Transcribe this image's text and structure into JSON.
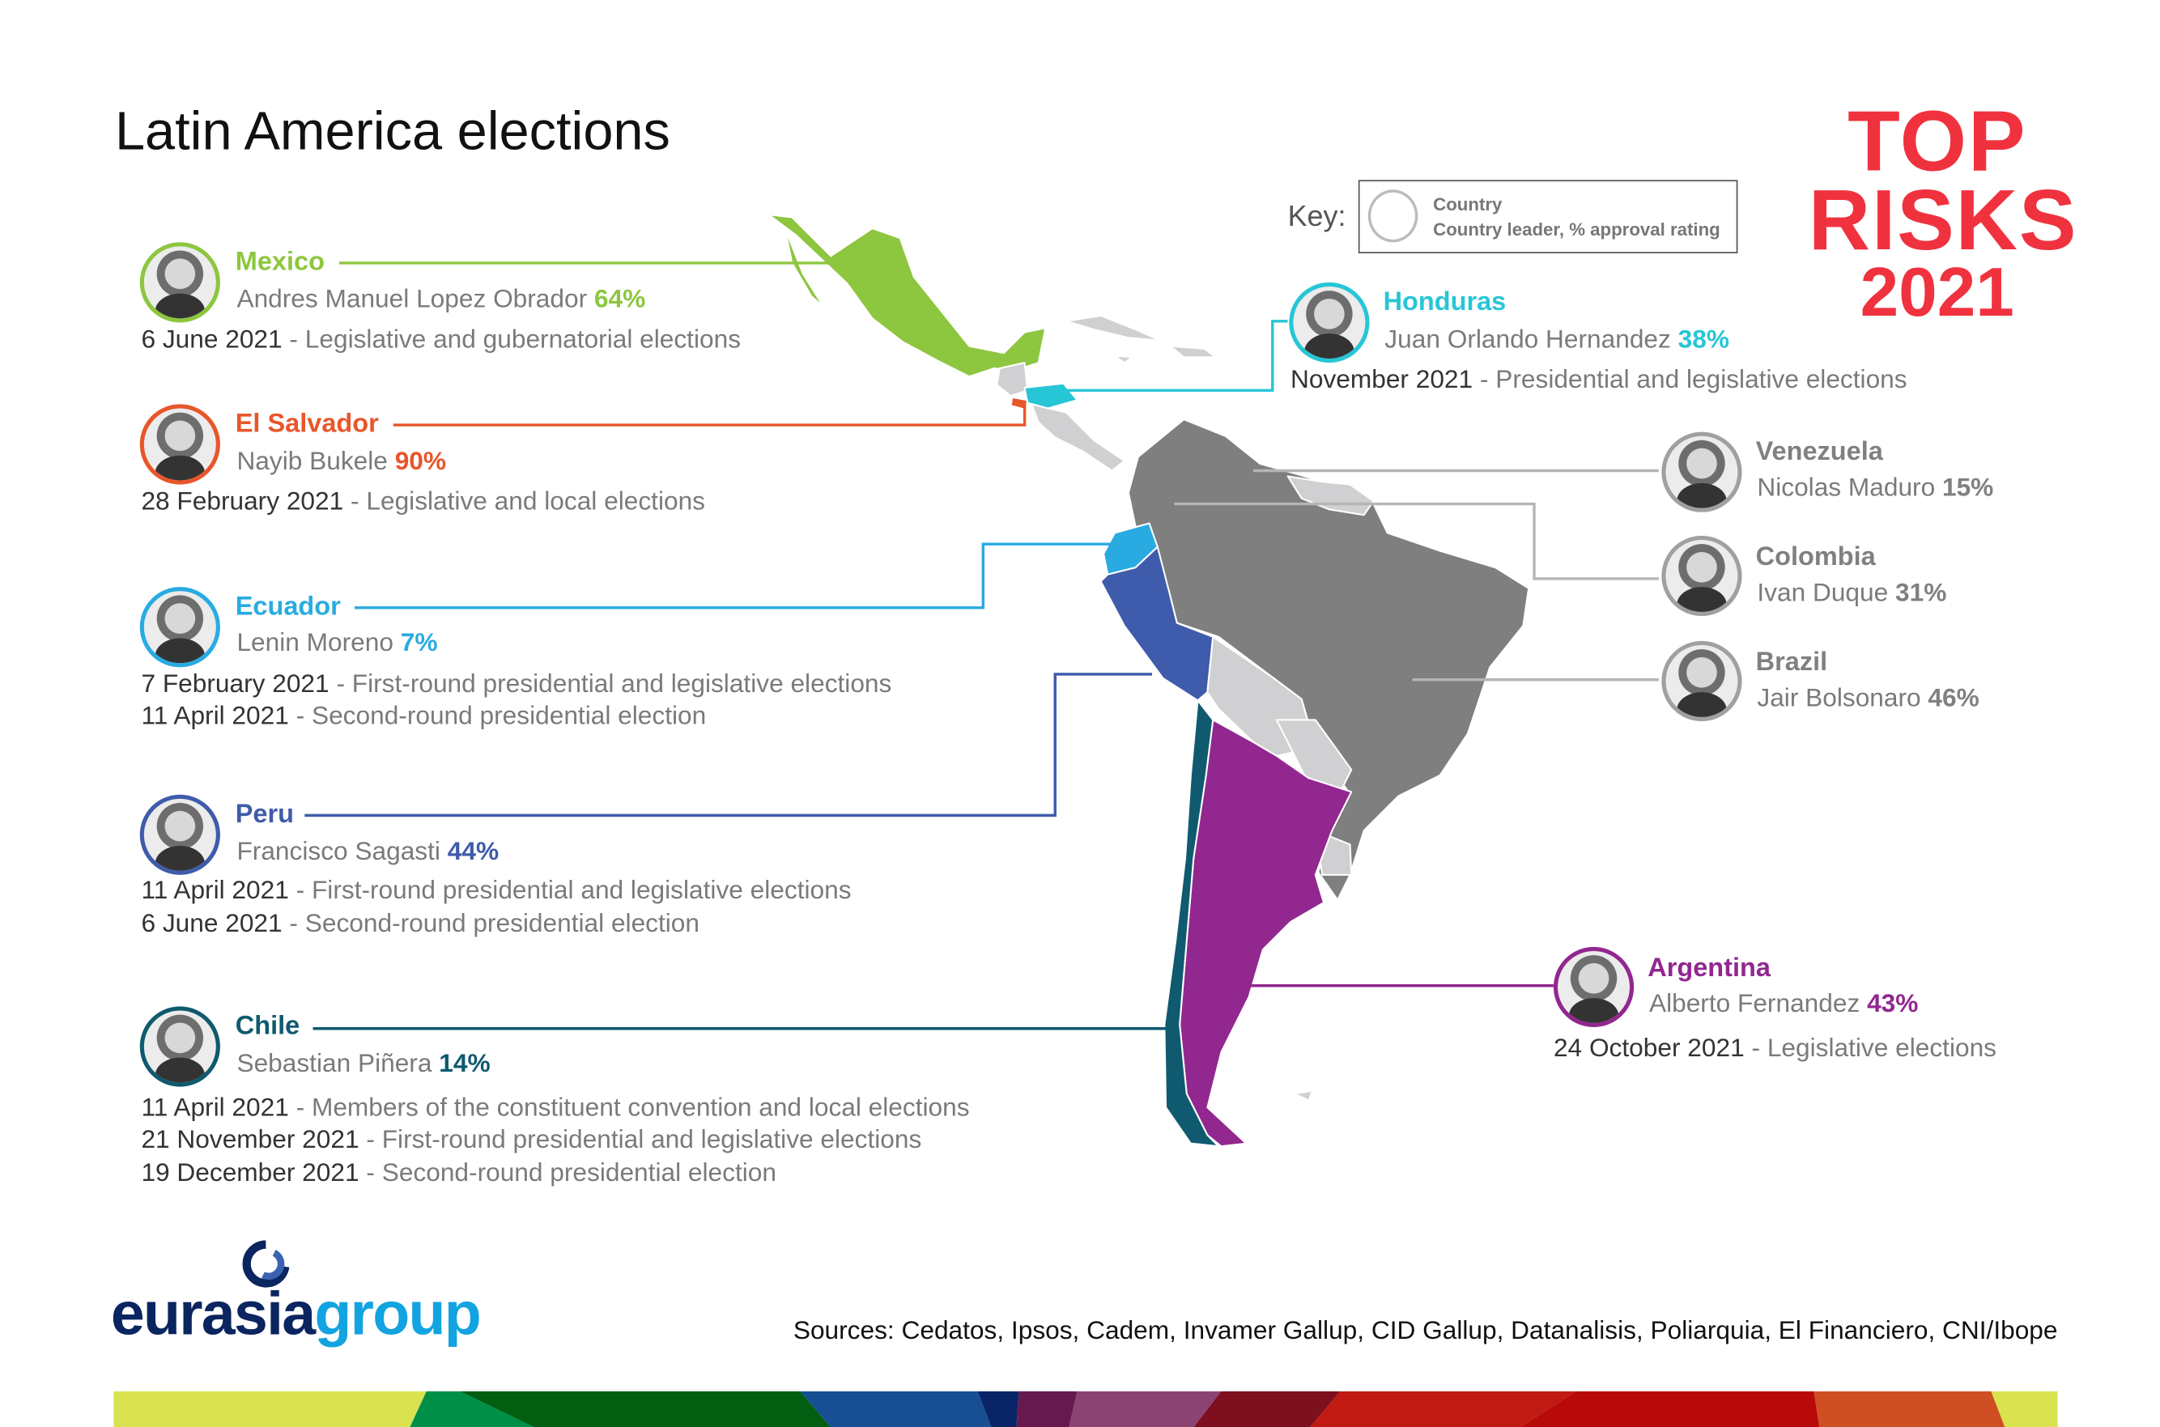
{
  "title": "Latin America elections",
  "key": {
    "label": "Key:",
    "line1": "Country",
    "line2": "Country leader, % approval rating"
  },
  "brand": {
    "line1": "TOP",
    "line2": "RISKS",
    "line3": "2021",
    "color": "#f0323f"
  },
  "countries": [
    {
      "name": "Mexico",
      "leader": "Andres Manuel Lopez Obrador",
      "approval": "64%",
      "color": "#8dc63f",
      "elections": [
        {
          "date": "6 June 2021",
          "desc": "Legislative and gubernatorial elections"
        }
      ]
    },
    {
      "name": "El Salvador",
      "leader": "Nayib Bukele",
      "approval": "90%",
      "color": "#e8562a",
      "elections": [
        {
          "date": "28 February 2021",
          "desc": "Legislative and local elections"
        }
      ]
    },
    {
      "name": "Ecuador",
      "leader": "Lenin Moreno",
      "approval": "7%",
      "color": "#29abe2",
      "elections": [
        {
          "date": "7 February 2021",
          "desc": "First-round presidential and legislative elections"
        },
        {
          "date": "11 April 2021",
          "desc": "Second-round presidential election"
        }
      ]
    },
    {
      "name": "Peru",
      "leader": "Francisco Sagasti",
      "approval": "44%",
      "color": "#3f5bab",
      "elections": [
        {
          "date": "11 April 2021",
          "desc": "First-round presidential and legislative elections"
        },
        {
          "date": "6 June 2021",
          "desc": "Second-round presidential election"
        }
      ]
    },
    {
      "name": "Chile",
      "leader": "Sebastian Piñera",
      "approval": "14%",
      "color": "#0f5a6e",
      "elections": [
        {
          "date": "11 April 2021",
          "desc": "Members of the constituent convention and local elections"
        },
        {
          "date": "21 November 2021",
          "desc": "First-round presidential and legislative elections"
        },
        {
          "date": "19 December 2021",
          "desc": "Second-round presidential election"
        }
      ]
    },
    {
      "name": "Honduras",
      "leader": "Juan Orlando Hernandez",
      "approval": "38%",
      "color": "#27c6d6",
      "elections": [
        {
          "date": "November 2021",
          "desc": "Presidential and legislative elections"
        }
      ]
    },
    {
      "name": "Venezuela",
      "leader": "Nicolas Maduro",
      "approval": "15%",
      "color": "#808080",
      "elections": []
    },
    {
      "name": "Colombia",
      "leader": "Ivan Duque",
      "approval": "31%",
      "color": "#808080",
      "elections": []
    },
    {
      "name": "Brazil",
      "leader": "Jair Bolsonaro",
      "approval": "46%",
      "color": "#808080",
      "elections": []
    },
    {
      "name": "Argentina",
      "leader": "Alberto Fernandez",
      "approval": "43%",
      "color": "#92278f",
      "elections": [
        {
          "date": "24 October 2021",
          "desc": "Legislative elections"
        }
      ]
    }
  ],
  "map_colors": {
    "other_country": "#d0d0d2",
    "gray_country": "#7f7f80"
  },
  "logo": {
    "part1": "eurasia",
    "part2": "group"
  },
  "sources": "Sources: Cedatos, Ipsos, Cadem, Invamer Gallup, CID Gallup, Datanalisis, Poliarquia, El Financiero, CNI/Ibope",
  "stripe_colors": [
    "#d9e350",
    "#008f47",
    "#025f12",
    "#174f92",
    "#0a2468",
    "#66194f",
    "#8a4373",
    "#7e0f1f",
    "#c11a12",
    "#b90a0a",
    "#d04f22",
    "#d9e350"
  ]
}
